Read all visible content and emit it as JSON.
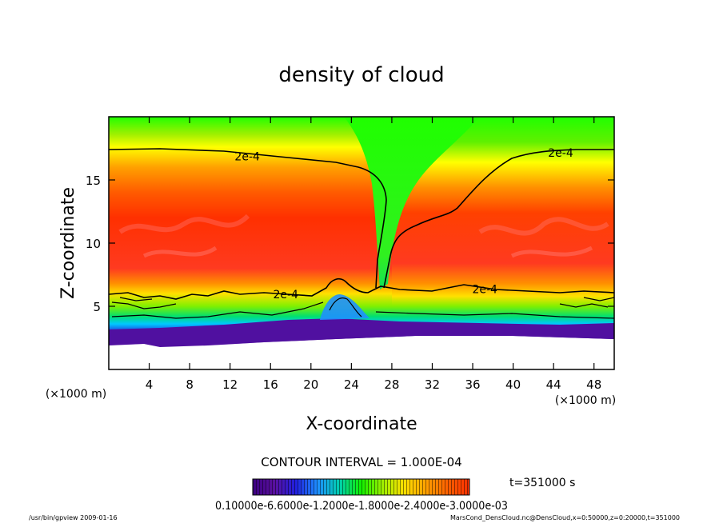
{
  "chart_data": {
    "type": "heatmap",
    "title": "density of cloud",
    "xlabel": "X-coordinate",
    "ylabel": "Z-coordinate",
    "x_unit": "(×1000 m)",
    "y_unit": "(×1000 m)",
    "xlim": [
      0,
      50
    ],
    "ylim": [
      0,
      20
    ],
    "x_ticks": [
      4,
      8,
      12,
      16,
      20,
      24,
      28,
      32,
      36,
      40,
      44,
      48
    ],
    "y_ticks": [
      5,
      10,
      15
    ],
    "grid": false,
    "contour_interval_text": "CONTOUR INTERVAL = 1.000E-04",
    "time_text": "t=351000 s",
    "colorbar_labels_text": "0.10000e-6.6000e-1.2000e-1.8000e-2.4000e-3.0000e-03",
    "colorbar_range": [
      1e-07,
      0.003
    ],
    "contour_level": "2e-4",
    "contour_labels": [
      {
        "text": "2e-4",
        "x": 13.7,
        "z": 16.8
      },
      {
        "text": "2e-4",
        "x": 44.7,
        "z": 17.1
      },
      {
        "text": "2e-4",
        "x": 17.5,
        "z": 5.9
      },
      {
        "text": "2e-4",
        "x": 37.2,
        "z": 6.3
      }
    ],
    "colormap": [
      "#3c0080",
      "#5a10a0",
      "#2020e0",
      "#1e90ff",
      "#00d0e0",
      "#00e090",
      "#10f000",
      "#80f000",
      "#ffff00",
      "#ffc000",
      "#ff8000",
      "#ff3000"
    ]
  },
  "footer": {
    "left": "/usr/bin/gpview   2009-01-16",
    "right": "MarsCond_DensCloud.nc@DensCloud,x=0:50000,z=0:20000,t=351000"
  }
}
